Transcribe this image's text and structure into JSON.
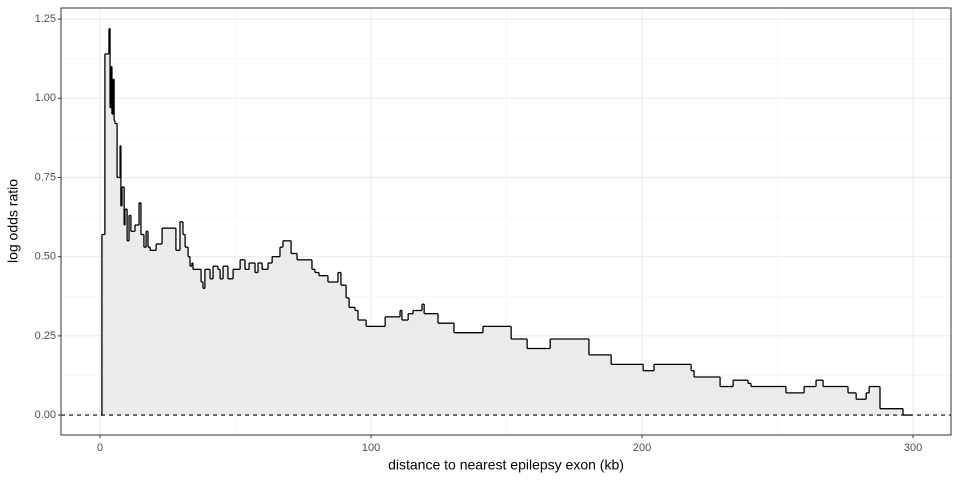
{
  "chart_data": {
    "type": "step",
    "x_label": "distance to nearest epilepsy exon (kb)",
    "y_label": "log odds ratio",
    "series": [
      {
        "color": "#000000",
        "fill": "#ebebeb",
        "x": [
          0.4,
          0.7,
          1.5,
          1.8,
          3.3,
          3.7,
          4.1,
          4.4,
          4.8,
          5.2,
          5.5,
          6.3,
          7.0,
          7.4,
          7.7,
          8.1,
          8.9,
          9.2,
          10.0,
          10.7,
          11.4,
          12.2,
          12.9,
          14.0,
          14.4,
          15.1,
          16.2,
          17.0,
          17.7,
          18.5,
          20.7,
          22.9,
          28.0,
          29.5,
          30.6,
          31.4,
          32.5,
          33.2,
          33.9,
          34.3,
          36.2,
          37.3,
          38.0,
          38.7,
          40.6,
          41.7,
          43.5,
          44.3,
          45.4,
          46.5,
          47.2,
          49.1,
          51.7,
          53.5,
          55.0,
          57.2,
          58.3,
          59.8,
          62.0,
          63.5,
          66.4,
          67.5,
          70.5,
          72.7,
          78.2,
          79.3,
          80.8,
          84.1,
          87.8,
          88.9,
          90.8,
          91.9,
          94.1,
          95.2,
          98.2,
          105.2,
          110.7,
          111.4,
          113.7,
          115.5,
          118.8,
          119.6,
          124.7,
          130.6,
          141.3,
          151.7,
          157.6,
          166.1,
          180.4,
          188.6,
          200.4,
          204.4,
          218.1,
          219.2,
          228.8,
          233.6,
          239.1,
          240.2,
          253.1,
          259.8,
          264.2,
          266.8,
          276.0,
          279.0,
          282.7,
          283.8,
          287.8,
          296.3,
          299.6
        ],
        "values": [
          0,
          0.57,
          0.57,
          1.14,
          1.22,
          0.97,
          1.1,
          0.95,
          1.06,
          0.93,
          0.92,
          0.75,
          0.75,
          0.85,
          0.66,
          0.72,
          0.6,
          0.65,
          0.55,
          0.63,
          0.58,
          0.58,
          0.6,
          0.6,
          0.67,
          0.57,
          0.53,
          0.58,
          0.53,
          0.52,
          0.54,
          0.59,
          0.52,
          0.61,
          0.57,
          0.53,
          0.5,
          0.47,
          0.48,
          0.46,
          0.46,
          0.42,
          0.4,
          0.46,
          0.43,
          0.47,
          0.46,
          0.43,
          0.47,
          0.47,
          0.43,
          0.46,
          0.49,
          0.46,
          0.48,
          0.45,
          0.48,
          0.46,
          0.48,
          0.5,
          0.53,
          0.55,
          0.51,
          0.49,
          0.46,
          0.45,
          0.44,
          0.42,
          0.45,
          0.41,
          0.37,
          0.34,
          0.33,
          0.3,
          0.28,
          0.31,
          0.33,
          0.3,
          0.32,
          0.33,
          0.35,
          0.32,
          0.29,
          0.26,
          0.28,
          0.24,
          0.21,
          0.24,
          0.19,
          0.16,
          0.14,
          0.16,
          0.14,
          0.12,
          0.09,
          0.11,
          0.1,
          0.09,
          0.07,
          0.09,
          0.11,
          0.09,
          0.07,
          0.05,
          0.07,
          0.09,
          0.02,
          0,
          0
        ]
      }
    ],
    "xlim": [
      -14.4,
      314
    ],
    "ylim": [
      -0.063,
      1.285
    ],
    "xticks": [
      0,
      100,
      200,
      300
    ],
    "yticks": [
      {
        "value": 0,
        "label": "0.00"
      },
      {
        "value": 0.25,
        "label": "0.25"
      },
      {
        "value": 0.5,
        "label": "0.50"
      },
      {
        "value": 0.75,
        "label": "0.75"
      },
      {
        "value": 1,
        "label": "1.00"
      },
      {
        "value": 1.25,
        "label": "1.25"
      }
    ],
    "x_minor_ticks": [
      50,
      150,
      250
    ],
    "y_minor_ticks": [
      0.125,
      0.375,
      0.625,
      0.875,
      1.125
    ],
    "hline": 0,
    "grid": true
  }
}
